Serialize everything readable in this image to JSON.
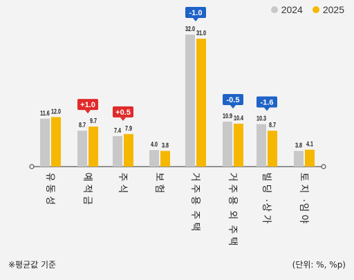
{
  "legend": {
    "items": [
      {
        "label": "2024",
        "color": "#c8c8c8"
      },
      {
        "label": "2025",
        "color": "#f5b700"
      }
    ]
  },
  "footnote": {
    "left": "※평균값 기준",
    "right": "(단위: %, %p)"
  },
  "chart_data": {
    "type": "bar",
    "categories": [
      "유동성",
      "예적금",
      "주식",
      "보험",
      "거주용 주택",
      "거주용 외 주택",
      "빌딩·상가",
      "토지·임야"
    ],
    "series": [
      {
        "name": "2024",
        "color": "#c8c8c8",
        "values": [
          11.6,
          8.7,
          7.4,
          4.0,
          32.0,
          10.9,
          10.3,
          3.8
        ]
      },
      {
        "name": "2025",
        "color": "#f5b700",
        "values": [
          12.0,
          9.7,
          7.9,
          3.8,
          31.0,
          10.4,
          8.7,
          4.1
        ]
      }
    ],
    "value_labels": {
      "2024": [
        "11.6",
        "8.7",
        "7.4",
        "4.0",
        "32.0",
        "10.9",
        "10.3",
        "3.8"
      ],
      "2025": [
        "12.0",
        "9.7",
        "7.9",
        "3.8",
        "31.0",
        "10.4",
        "8.7",
        "4.1"
      ]
    },
    "changes": [
      {
        "category": "예적금",
        "text": "+1.0",
        "color": "#e02a2a"
      },
      {
        "category": "주식",
        "text": "+0.5",
        "color": "#e02a2a"
      },
      {
        "category": "거주용 주택",
        "text": "-1.0",
        "color": "#1f63c6"
      },
      {
        "category": "거주용 외 주택",
        "text": "-0.5",
        "color": "#1f63c6"
      },
      {
        "category": "빌딩·상가",
        "text": "-1.6",
        "color": "#1f63c6"
      }
    ],
    "ylim": [
      0,
      32
    ],
    "legend_position": "top-right",
    "grid": false
  }
}
